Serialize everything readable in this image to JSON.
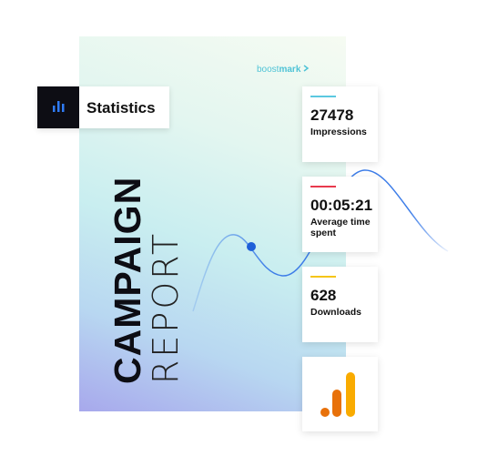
{
  "brand": {
    "prefix": "boost",
    "suffix": "mark"
  },
  "badge": {
    "label": "Statistics"
  },
  "report": {
    "title": "CAMPAIGN",
    "subtitle": "REPORT"
  },
  "cards": [
    {
      "value": 27478,
      "label": "Impressions",
      "accent": "#5bc8e0"
    },
    {
      "value": "00:05:21",
      "label": "Average time spent",
      "accent": "#e8394d"
    },
    {
      "value": 628,
      "label": "Downloads",
      "accent": "#f5c518"
    }
  ]
}
